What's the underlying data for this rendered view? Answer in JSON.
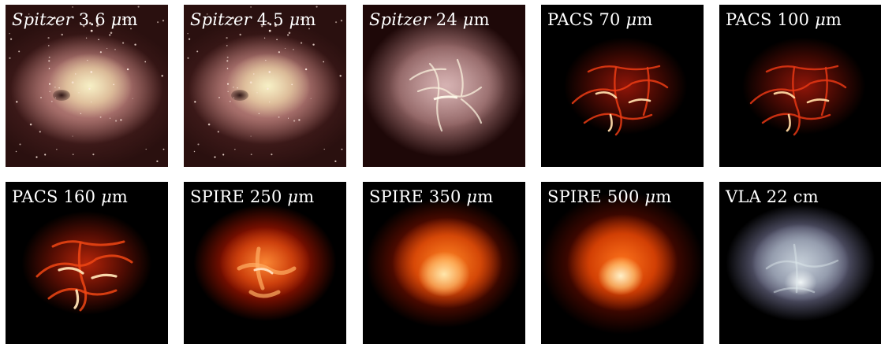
{
  "panels": [
    {
      "prefix": "Spitzer",
      "text": " 3.6 ",
      "unit_sym": "μ",
      "unit_rest": "m",
      "style": "irac"
    },
    {
      "prefix": "Spitzer",
      "text": " 4.5 ",
      "unit_sym": "μ",
      "unit_rest": "m",
      "style": "irac"
    },
    {
      "prefix": "Spitzer",
      "text": " 24 ",
      "unit_sym": "μ",
      "unit_rest": "m",
      "style": "mips"
    },
    {
      "prefix": "",
      "text": "PACS 70 ",
      "unit_sym": "μ",
      "unit_rest": "m",
      "style": "pacs"
    },
    {
      "prefix": "",
      "text": "PACS 100 ",
      "unit_sym": "μ",
      "unit_rest": "m",
      "style": "pacs"
    },
    {
      "prefix": "",
      "text": "PACS 160 ",
      "unit_sym": "μ",
      "unit_rest": "m",
      "style": "pacs160"
    },
    {
      "prefix": "",
      "text": "SPIRE 250 ",
      "unit_sym": "μ",
      "unit_rest": "m",
      "style": "s250"
    },
    {
      "prefix": "",
      "text": "SPIRE 350 ",
      "unit_sym": "μ",
      "unit_rest": "m",
      "style": "s350"
    },
    {
      "prefix": "",
      "text": "SPIRE 500 ",
      "unit_sym": "μ",
      "unit_rest": "m",
      "style": "s500"
    },
    {
      "prefix": "",
      "text": "VLA 22 cm",
      "unit_sym": "",
      "unit_rest": "",
      "style": "vla"
    }
  ],
  "colors": {
    "irac_background": "#2a100f",
    "mips_background": "#1e0808",
    "pacs_filament": "#d2280a",
    "spire_core": "#ff8c28",
    "vla_emission": "#b4c0cd"
  }
}
